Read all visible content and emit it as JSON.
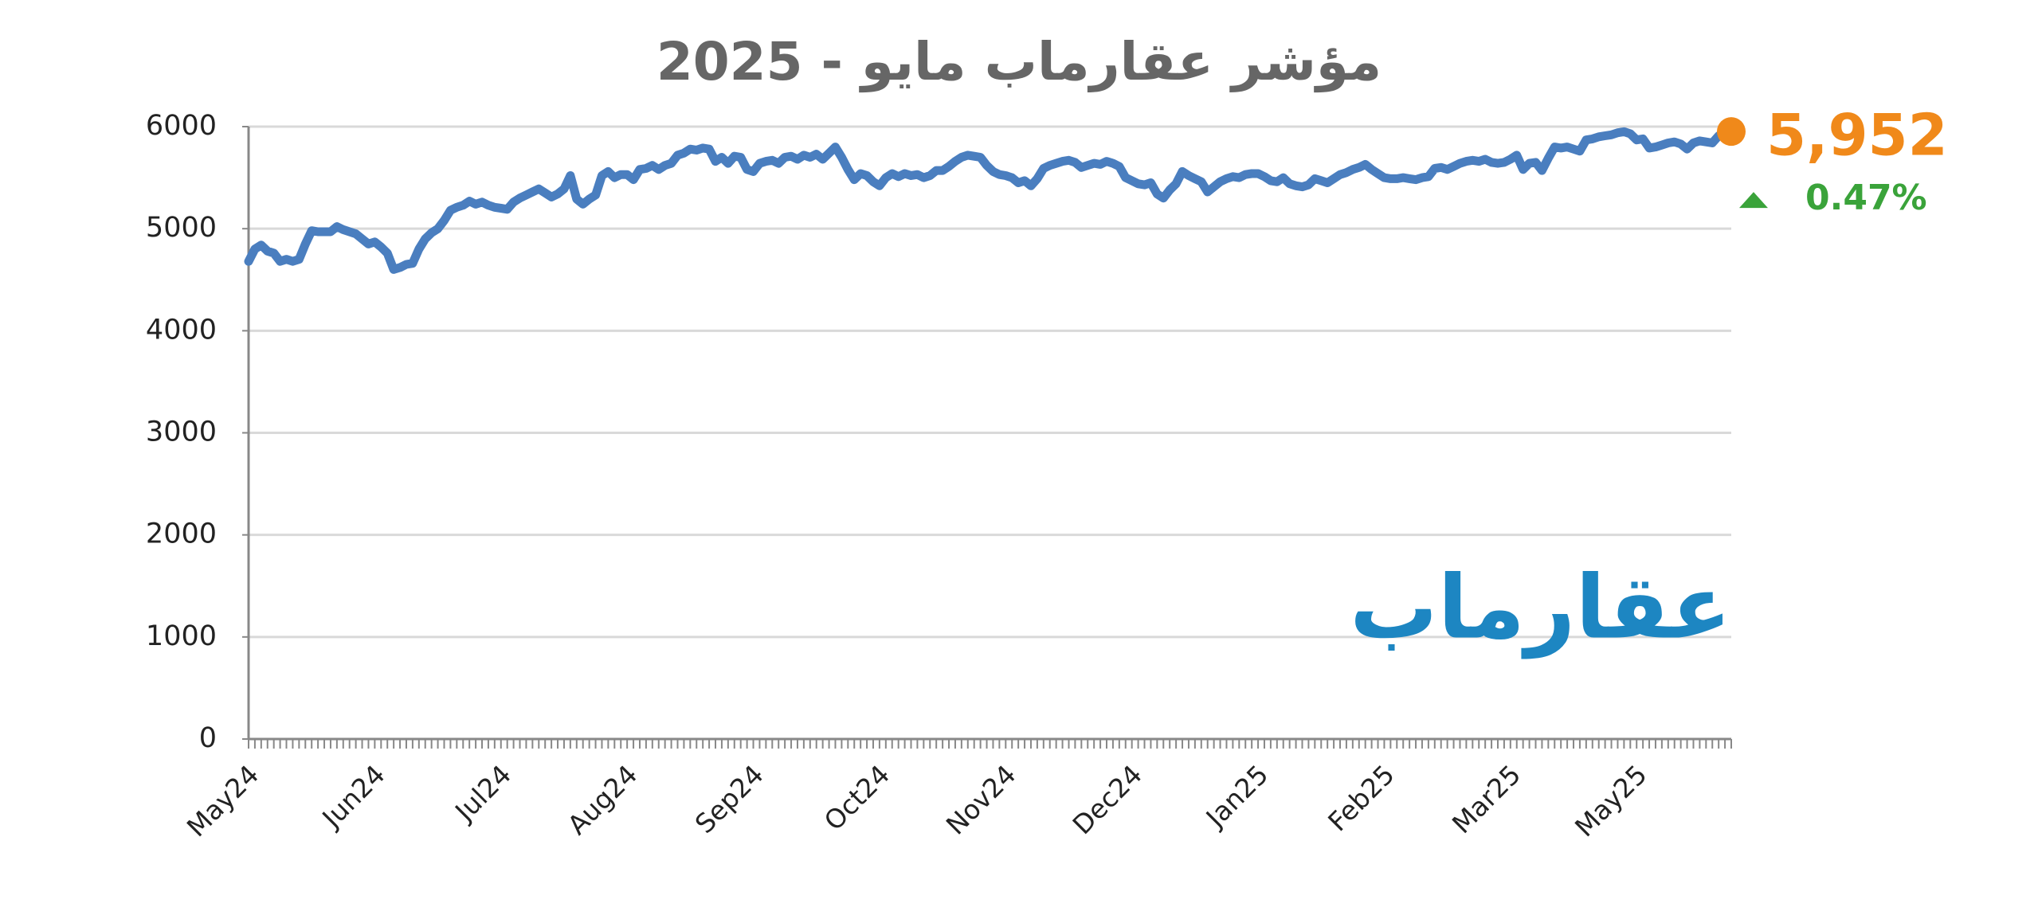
{
  "chart_data": {
    "type": "line",
    "title": "مؤشر عقارماب مايو - 2025",
    "logo": "عقارماب",
    "color": "#4a7ebf",
    "marker_color": "#f0891a",
    "annotations": [
      {
        "text": "5,952",
        "color": "#f0891a"
      },
      {
        "text": "0.47%",
        "color": "#3aa33a"
      }
    ],
    "ylim": [
      0,
      6000
    ],
    "yticks": [
      0,
      1000,
      2000,
      3000,
      4000,
      5000,
      6000
    ],
    "grid": true,
    "categories": [
      "May24",
      null,
      null,
      null,
      null,
      null,
      null,
      null,
      null,
      null,
      null,
      null,
      null,
      null,
      null,
      null,
      null,
      null,
      null,
      null,
      "Jun24",
      null,
      null,
      null,
      null,
      null,
      null,
      null,
      null,
      null,
      null,
      null,
      null,
      null,
      null,
      null,
      null,
      null,
      null,
      null,
      "Jul24",
      null,
      null,
      null,
      null,
      null,
      null,
      null,
      null,
      null,
      null,
      null,
      null,
      null,
      null,
      null,
      null,
      null,
      null,
      null,
      "Aug24",
      null,
      null,
      null,
      null,
      null,
      null,
      null,
      null,
      null,
      null,
      null,
      null,
      null,
      null,
      null,
      null,
      null,
      null,
      null,
      "Sep24",
      null,
      null,
      null,
      null,
      null,
      null,
      null,
      null,
      null,
      null,
      null,
      null,
      null,
      null,
      null,
      null,
      null,
      null,
      null,
      "Oct24",
      null,
      null,
      null,
      null,
      null,
      null,
      null,
      null,
      null,
      null,
      null,
      null,
      null,
      null,
      null,
      null,
      null,
      null,
      null,
      "Nov24",
      null,
      null,
      null,
      null,
      null,
      null,
      null,
      null,
      null,
      null,
      null,
      null,
      null,
      null,
      null,
      null,
      null,
      null,
      null,
      "Dec24",
      null,
      null,
      null,
      null,
      null,
      null,
      null,
      null,
      null,
      null,
      null,
      null,
      null,
      null,
      null,
      null,
      null,
      null,
      null,
      "Jan25",
      null,
      null,
      null,
      null,
      null,
      null,
      null,
      null,
      null,
      null,
      null,
      null,
      null,
      null,
      null,
      null,
      null,
      null,
      null,
      "Feb25",
      null,
      null,
      null,
      null,
      null,
      null,
      null,
      null,
      null,
      null,
      null,
      null,
      null,
      null,
      null,
      null,
      null,
      null,
      null,
      "Mar25",
      null,
      null,
      null,
      null,
      null,
      null,
      null,
      null,
      null,
      null,
      null,
      null,
      null,
      null,
      null,
      null,
      null,
      null,
      null,
      "May25",
      null,
      null,
      null,
      null,
      null,
      null,
      null,
      null,
      null,
      null,
      null,
      null,
      null,
      null,
      null
    ],
    "values": [
      4680,
      4800,
      4840,
      4780,
      4760,
      4680,
      4700,
      4680,
      4700,
      4850,
      4980,
      4970,
      4970,
      4970,
      5020,
      4990,
      4970,
      4950,
      4900,
      4850,
      4870,
      4820,
      4760,
      4600,
      4620,
      4650,
      4660,
      4800,
      4900,
      4960,
      5000,
      5080,
      5180,
      5210,
      5230,
      5270,
      5240,
      5260,
      5230,
      5210,
      5200,
      5190,
      5260,
      5300,
      5330,
      5360,
      5390,
      5350,
      5310,
      5340,
      5390,
      5520,
      5290,
      5240,
      5290,
      5330,
      5520,
      5560,
      5500,
      5530,
      5530,
      5480,
      5580,
      5590,
      5620,
      5580,
      5620,
      5640,
      5720,
      5740,
      5780,
      5770,
      5790,
      5780,
      5660,
      5700,
      5640,
      5710,
      5700,
      5580,
      5560,
      5640,
      5660,
      5670,
      5640,
      5700,
      5710,
      5680,
      5720,
      5700,
      5730,
      5680,
      5740,
      5800,
      5700,
      5580,
      5480,
      5540,
      5520,
      5460,
      5420,
      5500,
      5540,
      5510,
      5540,
      5520,
      5530,
      5500,
      5520,
      5570,
      5570,
      5610,
      5660,
      5700,
      5720,
      5710,
      5700,
      5620,
      5560,
      5530,
      5520,
      5500,
      5450,
      5470,
      5420,
      5490,
      5590,
      5620,
      5640,
      5660,
      5670,
      5650,
      5600,
      5620,
      5640,
      5630,
      5660,
      5640,
      5610,
      5500,
      5470,
      5440,
      5430,
      5450,
      5340,
      5300,
      5380,
      5440,
      5560,
      5520,
      5490,
      5460,
      5360,
      5410,
      5460,
      5490,
      5510,
      5500,
      5530,
      5540,
      5540,
      5510,
      5470,
      5460,
      5500,
      5440,
      5420,
      5410,
      5430,
      5490,
      5470,
      5450,
      5490,
      5530,
      5550,
      5580,
      5600,
      5630,
      5580,
      5540,
      5500,
      5490,
      5490,
      5500,
      5490,
      5480,
      5500,
      5510,
      5590,
      5600,
      5580,
      5610,
      5640,
      5660,
      5670,
      5660,
      5680,
      5650,
      5640,
      5650,
      5680,
      5720,
      5580,
      5640,
      5650,
      5570,
      5690,
      5800,
      5790,
      5800,
      5780,
      5760,
      5870,
      5880,
      5900,
      5910,
      5920,
      5940,
      5950,
      5930,
      5870,
      5880,
      5790,
      5800,
      5820,
      5840,
      5850,
      5830,
      5780,
      5840,
      5860,
      5850,
      5840,
      5910,
      5930,
      5952
    ]
  }
}
